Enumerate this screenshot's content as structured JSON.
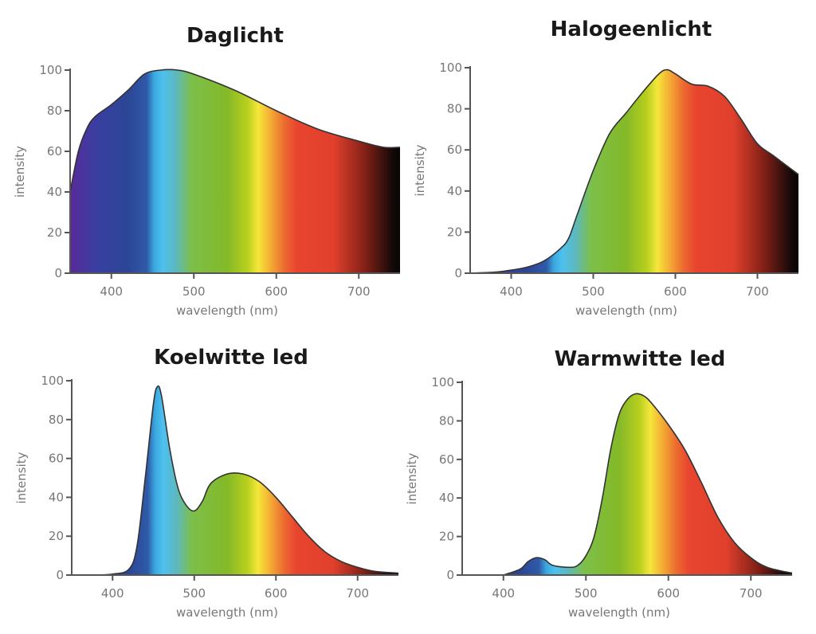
{
  "chart_data": [
    {
      "type": "area",
      "title": "Daglicht",
      "xlabel": "wavelength (nm)",
      "ylabel": "intensity",
      "xlim": [
        350,
        750
      ],
      "ylim": [
        0,
        100
      ],
      "xticks": [
        400,
        500,
        600,
        700
      ],
      "yticks": [
        0,
        20,
        40,
        60,
        80,
        100
      ],
      "fill": "visible spectrum gradient",
      "x": [
        350,
        360,
        370,
        380,
        400,
        420,
        440,
        460,
        480,
        500,
        550,
        600,
        650,
        700,
        730,
        750
      ],
      "y": [
        40,
        60,
        71,
        77,
        83,
        90,
        98,
        100,
        100,
        98,
        90,
        80,
        71,
        65,
        62,
        62
      ]
    },
    {
      "type": "area",
      "title": "Halogeenlicht",
      "xlabel": "wavelength (nm)",
      "ylabel": "intensity",
      "xlim": [
        350,
        750
      ],
      "ylim": [
        0,
        100
      ],
      "xticks": [
        400,
        500,
        600,
        700
      ],
      "yticks": [
        0,
        20,
        40,
        60,
        80,
        100
      ],
      "fill": "visible spectrum gradient",
      "x": [
        350,
        380,
        400,
        420,
        440,
        460,
        470,
        480,
        500,
        520,
        540,
        560,
        580,
        590,
        600,
        620,
        640,
        660,
        680,
        700,
        720,
        750
      ],
      "y": [
        0,
        0.5,
        1.5,
        3,
        6,
        12,
        17,
        28,
        50,
        68,
        78,
        88,
        97,
        99,
        97,
        92,
        91,
        86,
        75,
        63,
        57,
        48
      ]
    },
    {
      "type": "area",
      "title": "Koelwitte led",
      "xlabel": "wavelength (nm)",
      "ylabel": "intensity",
      "xlim": [
        350,
        750
      ],
      "ylim": [
        0,
        100
      ],
      "xticks": [
        400,
        500,
        600,
        700
      ],
      "yticks": [
        0,
        20,
        40,
        60,
        80,
        100
      ],
      "fill": "visible spectrum gradient",
      "x": [
        380,
        400,
        420,
        430,
        440,
        450,
        455,
        460,
        470,
        480,
        490,
        500,
        510,
        520,
        540,
        560,
        580,
        600,
        620,
        640,
        660,
        680,
        700,
        720,
        750
      ],
      "y": [
        0,
        0.5,
        3,
        15,
        50,
        88,
        97,
        92,
        65,
        45,
        36,
        33,
        38,
        47,
        52,
        52,
        48,
        40,
        30,
        20,
        12,
        7,
        4,
        2,
        1
      ]
    },
    {
      "type": "area",
      "title": "Warmwitte led",
      "xlabel": "wavelength (nm)",
      "ylabel": "intensity",
      "xlim": [
        350,
        750
      ],
      "ylim": [
        0,
        100
      ],
      "xticks": [
        400,
        500,
        600,
        700
      ],
      "yticks": [
        0,
        20,
        40,
        60,
        80,
        100
      ],
      "fill": "visible spectrum gradient",
      "x": [
        400,
        420,
        430,
        440,
        450,
        460,
        480,
        490,
        500,
        510,
        520,
        530,
        540,
        550,
        560,
        570,
        580,
        600,
        620,
        640,
        660,
        680,
        700,
        720,
        750
      ],
      "y": [
        0,
        3,
        7,
        9,
        8,
        5,
        4,
        5,
        10,
        20,
        40,
        65,
        83,
        91,
        94,
        93,
        89,
        78,
        65,
        48,
        30,
        17,
        9,
        4,
        1
      ]
    }
  ],
  "colors": {
    "axis": "#555555",
    "outline": "#333333",
    "spectrum": [
      "#5a2a9a",
      "#2c4696",
      "#4ec0ee",
      "#7cbf4a",
      "#f5e73a",
      "#e8452f",
      "#120808"
    ]
  }
}
